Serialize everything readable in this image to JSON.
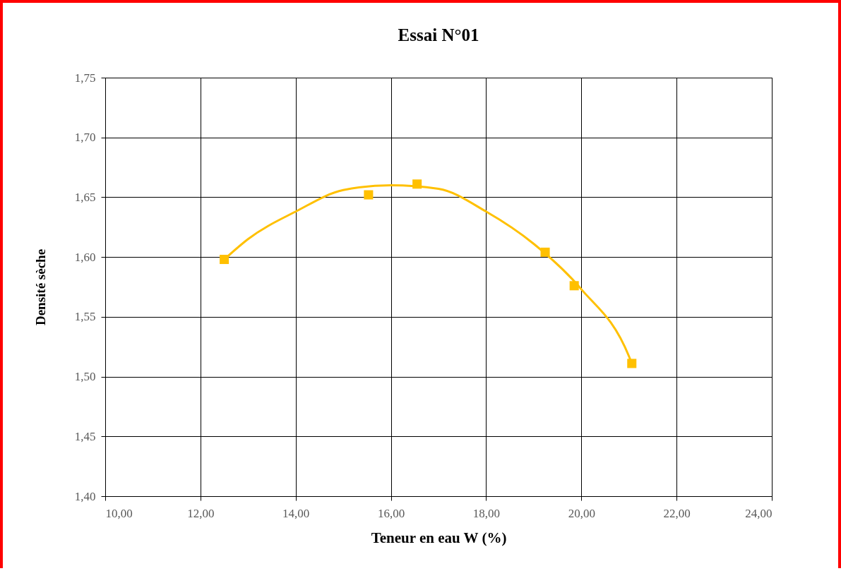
{
  "chart_data": {
    "type": "scatter",
    "title": "Essai N°01",
    "xlabel": "Teneur en eau W (%)",
    "ylabel": "Densité sèche",
    "xlim": [
      10,
      24
    ],
    "xticks": [
      {
        "value": 10,
        "label": "10,00"
      },
      {
        "value": 12,
        "label": "12,00"
      },
      {
        "value": 14,
        "label": "14,00"
      },
      {
        "value": 16,
        "label": "16,00"
      },
      {
        "value": 18,
        "label": "18,00"
      },
      {
        "value": 20,
        "label": "20,00"
      },
      {
        "value": 22,
        "label": "22,00"
      },
      {
        "value": 24,
        "label": "24,00"
      }
    ],
    "ylim": [
      1.4,
      1.75
    ],
    "yticks": [
      {
        "value": 1.4,
        "label": "1,40"
      },
      {
        "value": 1.45,
        "label": "1,45"
      },
      {
        "value": 1.5,
        "label": "1,50"
      },
      {
        "value": 1.55,
        "label": "1,55"
      },
      {
        "value": 1.6,
        "label": "1,60"
      },
      {
        "value": 1.65,
        "label": "1,65"
      },
      {
        "value": 1.7,
        "label": "1,70"
      },
      {
        "value": 1.75,
        "label": "1,75"
      }
    ],
    "grid": true,
    "series": [
      {
        "type": "line",
        "color": "#ffc000",
        "marker": "none",
        "x": [
          12.5,
          13,
          14,
          15,
          16,
          17,
          18,
          19,
          20,
          21,
          21.06
        ],
        "values": [
          1.598,
          1.615,
          1.638,
          1.656,
          1.66,
          1.657,
          1.638,
          1.611,
          1.573,
          1.517,
          1.511
        ]
      },
      {
        "type": "scatter",
        "color": "#ffc000",
        "marker": "square",
        "x": [
          12.5,
          15.53,
          16.55,
          19.24,
          19.85,
          21.06
        ],
        "values": [
          1.598,
          1.652,
          1.661,
          1.604,
          1.576,
          1.511
        ]
      }
    ]
  }
}
